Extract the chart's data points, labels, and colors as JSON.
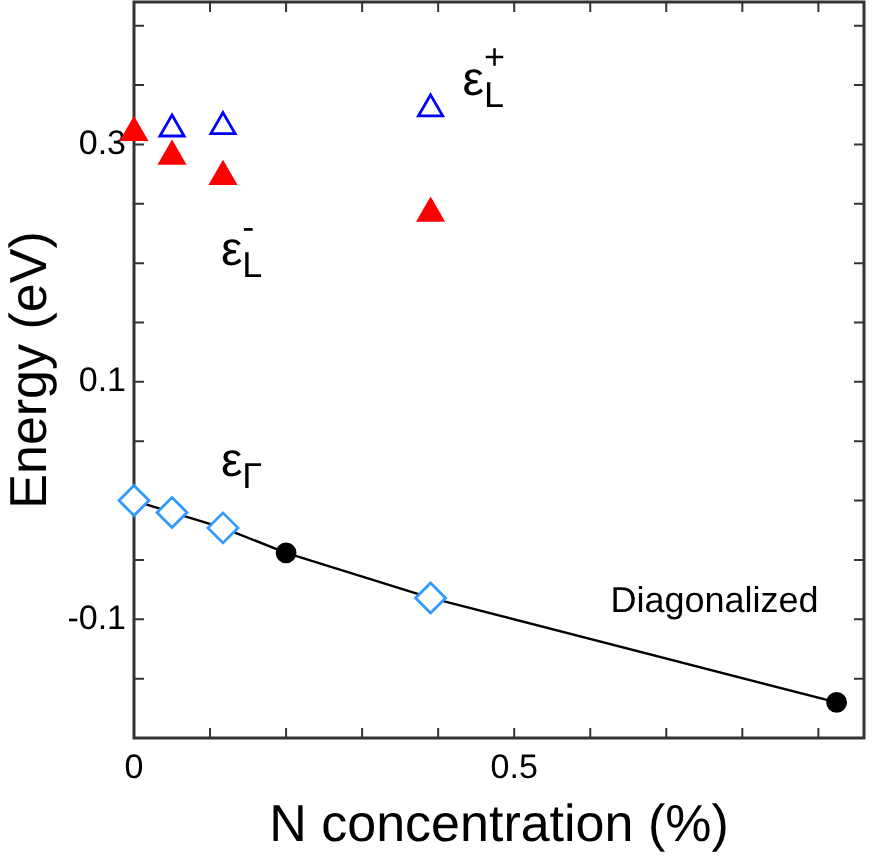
{
  "chart_data": {
    "type": "scatter",
    "xlabel": "N concentration (%)",
    "ylabel": "Energy (eV)",
    "xlim": [
      0,
      0.96
    ],
    "ylim": [
      -0.2,
      0.42
    ],
    "xticks": [
      0,
      {
        "value": 0.1,
        "label": null
      },
      {
        "value": 0.2,
        "label": null
      },
      {
        "value": 0.3,
        "label": null
      },
      {
        "value": 0.4,
        "label": null
      },
      0.5,
      {
        "value": 0.6,
        "label": null
      },
      {
        "value": 0.7,
        "label": null
      },
      {
        "value": 0.8,
        "label": null
      },
      {
        "value": 0.9,
        "label": null
      }
    ],
    "yticks": [
      {
        "value": -0.15,
        "label": null
      },
      -0.1,
      {
        "value": -0.05,
        "label": null
      },
      {
        "value": 0,
        "label": null
      },
      {
        "value": 0.05,
        "label": null
      },
      0.1,
      {
        "value": 0.15,
        "label": null
      },
      {
        "value": 0.2,
        "label": null
      },
      {
        "value": 0.25,
        "label": null
      },
      0.3,
      {
        "value": 0.35,
        "label": null
      },
      {
        "value": 0.4,
        "label": null
      }
    ],
    "grid": false,
    "legend": false,
    "series": [
      {
        "name": "ε$_{L}$$^{-}$",
        "marker": "triangle",
        "color": "#ff0000",
        "x": [
          0,
          0.05,
          0.117,
          0.39
        ],
        "values": [
          0.31,
          0.29,
          0.273,
          0.242
        ]
      },
      {
        "name": "ε$_{L}$$^{+}$",
        "marker": "triangle",
        "color": "#0000ff",
        "x": [
          0.05,
          0.117,
          0.39
        ],
        "values": [
          0.313,
          0.315,
          0.33
        ]
      },
      {
        "name": "ε$_{Γ}$",
        "marker": "diamond",
        "color": "#3399ff",
        "x": [
          0,
          0.05,
          0.117,
          0.39
        ],
        "values": [
          0,
          -0.01,
          -0.023,
          -0.082
        ]
      },
      {
        "name": "Diagonalized",
        "type": "line",
        "marker": "none",
        "color": "#000000",
        "x": [
          0,
          0.05,
          0.117,
          0.2,
          0.39,
          0.924
        ],
        "values": [
          0,
          -0.01,
          -0.023,
          -0.044,
          -0.082,
          -0.17
        ]
      },
      {
        "marker": "circle",
        "color": "#000000",
        "x": [
          0.2,
          0.924
        ],
        "values": [
          -0.044,
          -0.17
        ]
      }
    ]
  }
}
